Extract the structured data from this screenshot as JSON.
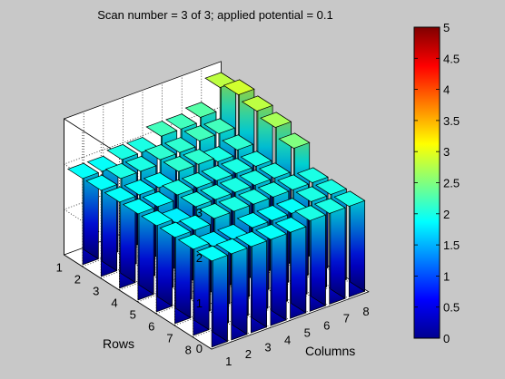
{
  "chart_data": {
    "type": "bar3d",
    "title": "Scan number = 3 of 3; applied potential = 0.1",
    "xlabel": "Columns",
    "ylabel": "Rows",
    "zlabel": "",
    "columns": [
      "1",
      "2",
      "3",
      "4",
      "5",
      "6",
      "7",
      "8"
    ],
    "rows": [
      "1",
      "2",
      "3",
      "4",
      "5",
      "6",
      "7",
      "8"
    ],
    "zlim": [
      0,
      3
    ],
    "zticks": [
      "0",
      "1",
      "2",
      "3"
    ],
    "grid": true,
    "colormap": "jet",
    "colorbar": {
      "min": 0,
      "max": 5,
      "ticks": [
        "0",
        "0.5",
        "1",
        "1.5",
        "2",
        "2.5",
        "3",
        "3.5",
        "4",
        "4.5",
        "5"
      ]
    },
    "values": [
      [
        1.9,
        1.9,
        2.0,
        2.0,
        2.2,
        2.2,
        2.3,
        2.8
      ],
      [
        1.9,
        2.0,
        2.0,
        2.1,
        2.1,
        2.2,
        2.2,
        2.9
      ],
      [
        1.9,
        1.9,
        1.9,
        2.1,
        2.1,
        2.0,
        2.1,
        2.8
      ],
      [
        1.9,
        1.9,
        2.0,
        2.0,
        2.0,
        2.0,
        2.0,
        2.7
      ],
      [
        1.9,
        1.8,
        2.0,
        2.0,
        2.0,
        2.0,
        2.0,
        2.5
      ],
      [
        1.9,
        1.9,
        2.0,
        2.0,
        2.0,
        2.0,
        2.0,
        2.0
      ],
      [
        1.9,
        1.8,
        1.8,
        1.9,
        1.9,
        1.9,
        2.0,
        2.0
      ],
      [
        1.9,
        1.9,
        1.9,
        1.9,
        1.9,
        2.0,
        2.0,
        2.0
      ]
    ]
  }
}
